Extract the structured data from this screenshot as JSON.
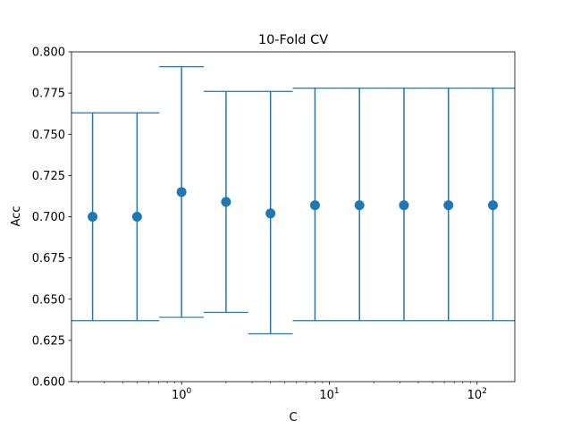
{
  "chart_data": {
    "type": "scatter",
    "title": "10-Fold CV",
    "xlabel": "C",
    "ylabel": "Acc",
    "x_scale": "log",
    "xlim": [
      0.18,
      180
    ],
    "ylim": [
      0.6,
      0.8
    ],
    "grid": false,
    "color": "#1f77b4",
    "x_ticks": [
      {
        "value": 1,
        "base": "10",
        "exp": "0"
      },
      {
        "value": 10,
        "base": "10",
        "exp": "1"
      },
      {
        "value": 100,
        "base": "10",
        "exp": "2"
      }
    ],
    "y_ticks": [
      "0.600",
      "0.625",
      "0.650",
      "0.675",
      "0.700",
      "0.725",
      "0.750",
      "0.775",
      "0.800"
    ],
    "points": [
      {
        "x": 0.25,
        "y": 0.7,
        "ylow": 0.637,
        "yhigh": 0.763
      },
      {
        "x": 0.5,
        "y": 0.7,
        "ylow": 0.637,
        "yhigh": 0.763
      },
      {
        "x": 1,
        "y": 0.715,
        "ylow": 0.639,
        "yhigh": 0.791
      },
      {
        "x": 2,
        "y": 0.709,
        "ylow": 0.642,
        "yhigh": 0.776
      },
      {
        "x": 4,
        "y": 0.702,
        "ylow": 0.629,
        "yhigh": 0.776
      },
      {
        "x": 8,
        "y": 0.707,
        "ylow": 0.637,
        "yhigh": 0.778
      },
      {
        "x": 16,
        "y": 0.707,
        "ylow": 0.637,
        "yhigh": 0.778
      },
      {
        "x": 32,
        "y": 0.707,
        "ylow": 0.637,
        "yhigh": 0.778
      },
      {
        "x": 64,
        "y": 0.707,
        "ylow": 0.637,
        "yhigh": 0.778
      },
      {
        "x": 128,
        "y": 0.707,
        "ylow": 0.637,
        "yhigh": 0.778
      }
    ]
  }
}
